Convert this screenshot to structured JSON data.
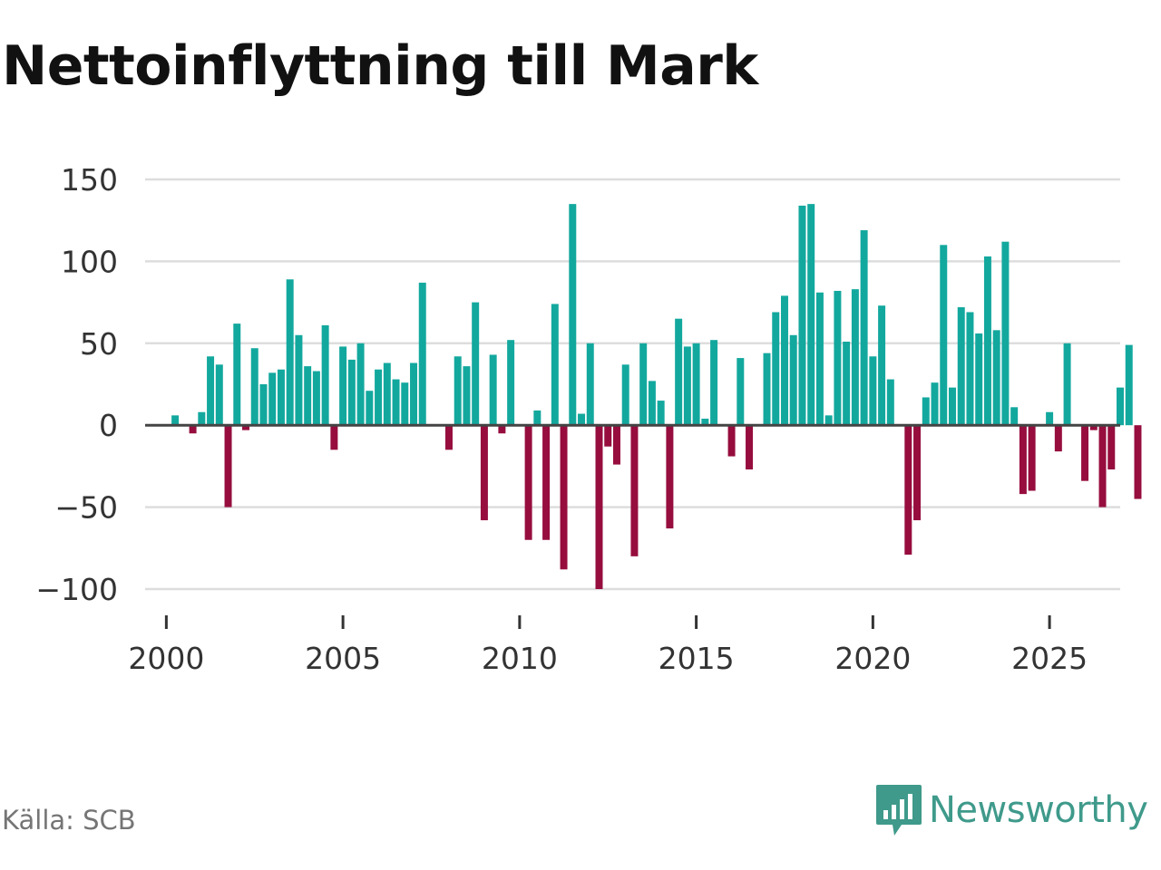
{
  "title": "Nettoinflyttning till Mark",
  "source": "Källa: SCB",
  "brand": "Newsworthy",
  "colors": {
    "positive": "#13a89e",
    "negative": "#960d3e",
    "grid": "#dddddd",
    "zero": "#444444",
    "brand": "#3f9a8b"
  },
  "chart_data": {
    "type": "bar",
    "frequency": "quarterly",
    "title": "Nettoinflyttning till Mark",
    "xlabel": "",
    "ylabel": "",
    "ylim": [
      -100,
      150
    ],
    "xlim": [
      1999.4,
      2027.0
    ],
    "yticks": [
      150,
      100,
      50,
      0,
      -50,
      -100
    ],
    "ytick_labels": [
      "150",
      "100",
      "50",
      "0",
      "−50",
      "−100"
    ],
    "xticks": [
      2000,
      2005,
      2010,
      2015,
      2020,
      2025
    ],
    "xtick_labels": [
      "2000",
      "2005",
      "2010",
      "2015",
      "2020",
      "2025"
    ],
    "x_start": 2000.0,
    "x_step": 0.25,
    "values": [
      0,
      6,
      0,
      -5,
      8,
      42,
      37,
      -50,
      62,
      -3,
      47,
      25,
      32,
      34,
      89,
      55,
      36,
      33,
      61,
      -15,
      48,
      40,
      50,
      21,
      34,
      38,
      28,
      26,
      38,
      87,
      0,
      0,
      -15,
      42,
      36,
      75,
      -58,
      43,
      -5,
      52,
      0,
      -70,
      9,
      -70,
      74,
      -88,
      135,
      7,
      50,
      -100,
      -13,
      -24,
      37,
      -80,
      50,
      27,
      15,
      -63,
      65,
      48,
      50,
      4,
      52,
      0,
      -19,
      41,
      -27,
      0,
      44,
      69,
      79,
      55,
      134,
      135,
      81,
      6,
      82,
      51,
      83,
      119,
      42,
      73,
      28,
      0,
      -79,
      -58,
      17,
      26,
      110,
      23,
      72,
      69,
      56,
      103,
      58,
      112,
      11,
      -42,
      -40,
      0,
      8,
      -16,
      50,
      0,
      -34,
      -3,
      -50,
      -27,
      23,
      49,
      -45
    ]
  }
}
